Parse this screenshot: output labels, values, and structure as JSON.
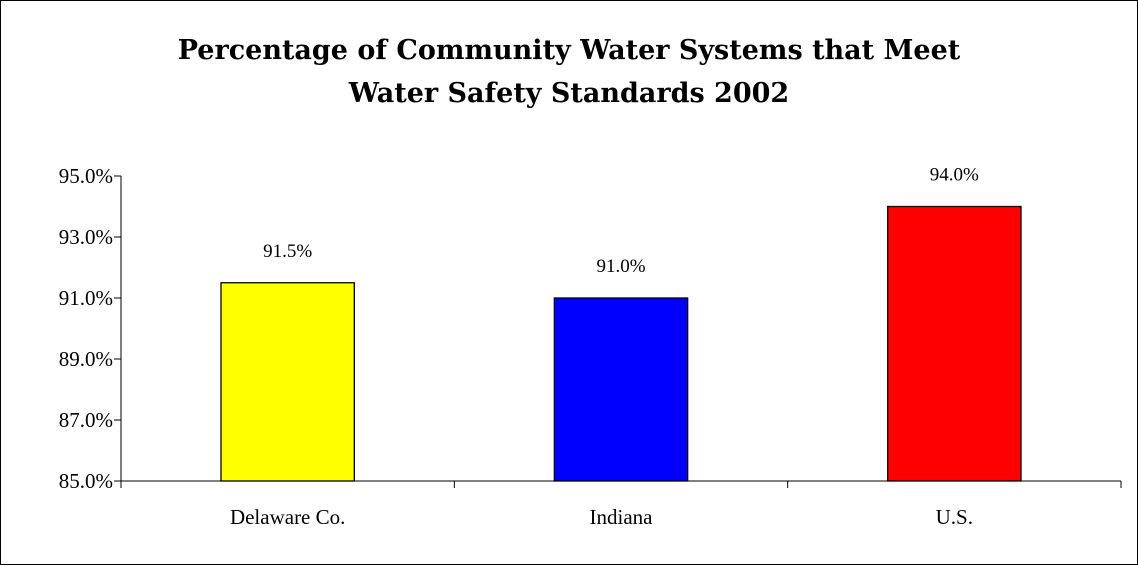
{
  "chart_data": {
    "type": "bar",
    "title_lines": [
      "Percentage of Community Water Systems that Meet",
      "Water Safety Standards 2002"
    ],
    "categories": [
      "Delaware Co.",
      "Indiana",
      "U.S."
    ],
    "values": [
      91.5,
      91.0,
      94.0
    ],
    "data_labels": [
      "91.5%",
      "91.0%",
      "94.0%"
    ],
    "colors": [
      "#ffff00",
      "#0000ff",
      "#ff0000"
    ],
    "ylim": [
      85.0,
      95.0
    ],
    "yticks": [
      85.0,
      87.0,
      89.0,
      91.0,
      93.0,
      95.0
    ],
    "ytick_labels": [
      "85.0%",
      "87.0%",
      "89.0%",
      "91.0%",
      "93.0%",
      "95.0%"
    ],
    "grid": false,
    "legend": "none",
    "xlabel": "",
    "ylabel": ""
  }
}
